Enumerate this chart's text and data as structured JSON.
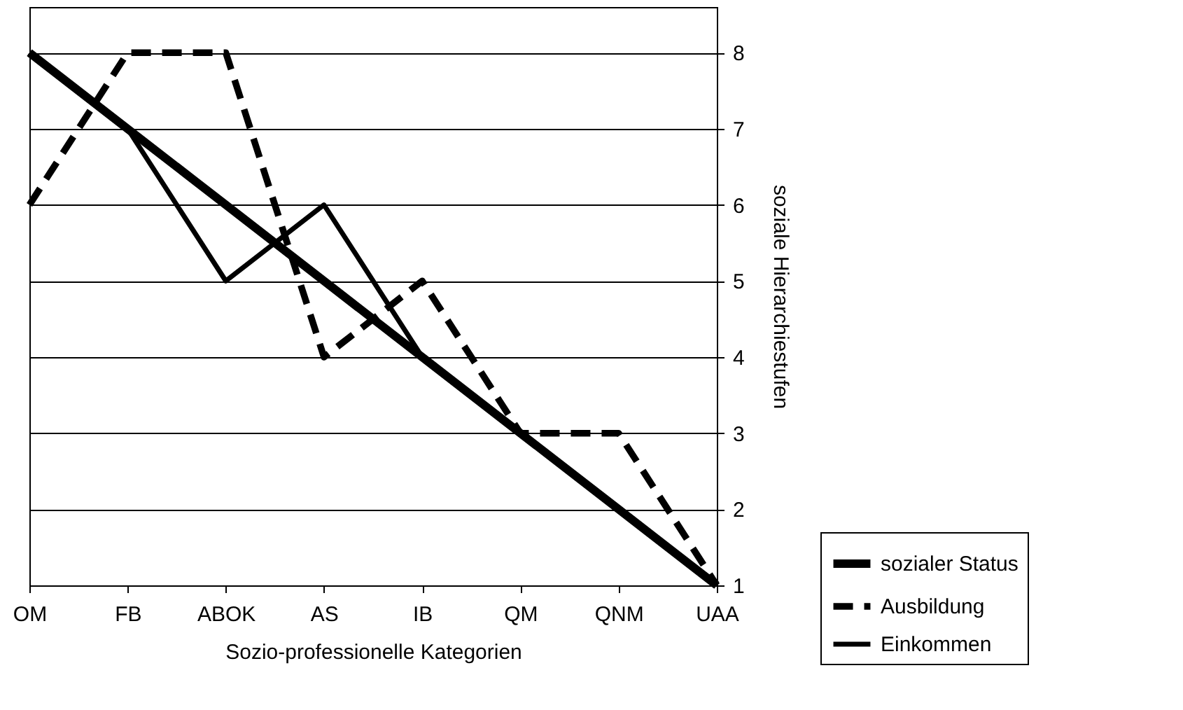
{
  "chart_data": {
    "type": "line",
    "xlabel": "Sozio-professionelle Kategorien",
    "ylabel": "soziale Hierarchiestufen",
    "categories": [
      "OM",
      "FB",
      "ABOK",
      "AS",
      "IB",
      "QM",
      "QNM",
      "UAA"
    ],
    "series": [
      {
        "name": "sozialer Status",
        "color": "#000000",
        "line_style": "solid",
        "values": [
          8,
          7,
          6,
          5,
          4,
          3,
          2,
          1
        ]
      },
      {
        "name": "Ausbildung",
        "color": "#000000",
        "line_style": "dashed",
        "values": [
          6,
          8,
          8,
          4,
          5,
          3,
          3,
          1
        ]
      },
      {
        "name": "Einkommen",
        "color": "#000000",
        "line_style": "solid",
        "values": [
          8,
          7,
          5,
          6,
          4,
          3,
          2,
          1
        ]
      }
    ],
    "ylim": [
      1,
      8.6
    ],
    "yticks": [
      1,
      2,
      3,
      4,
      5,
      6,
      7,
      8
    ],
    "grid": "y",
    "legend": "bottom right",
    "marker": "none"
  }
}
